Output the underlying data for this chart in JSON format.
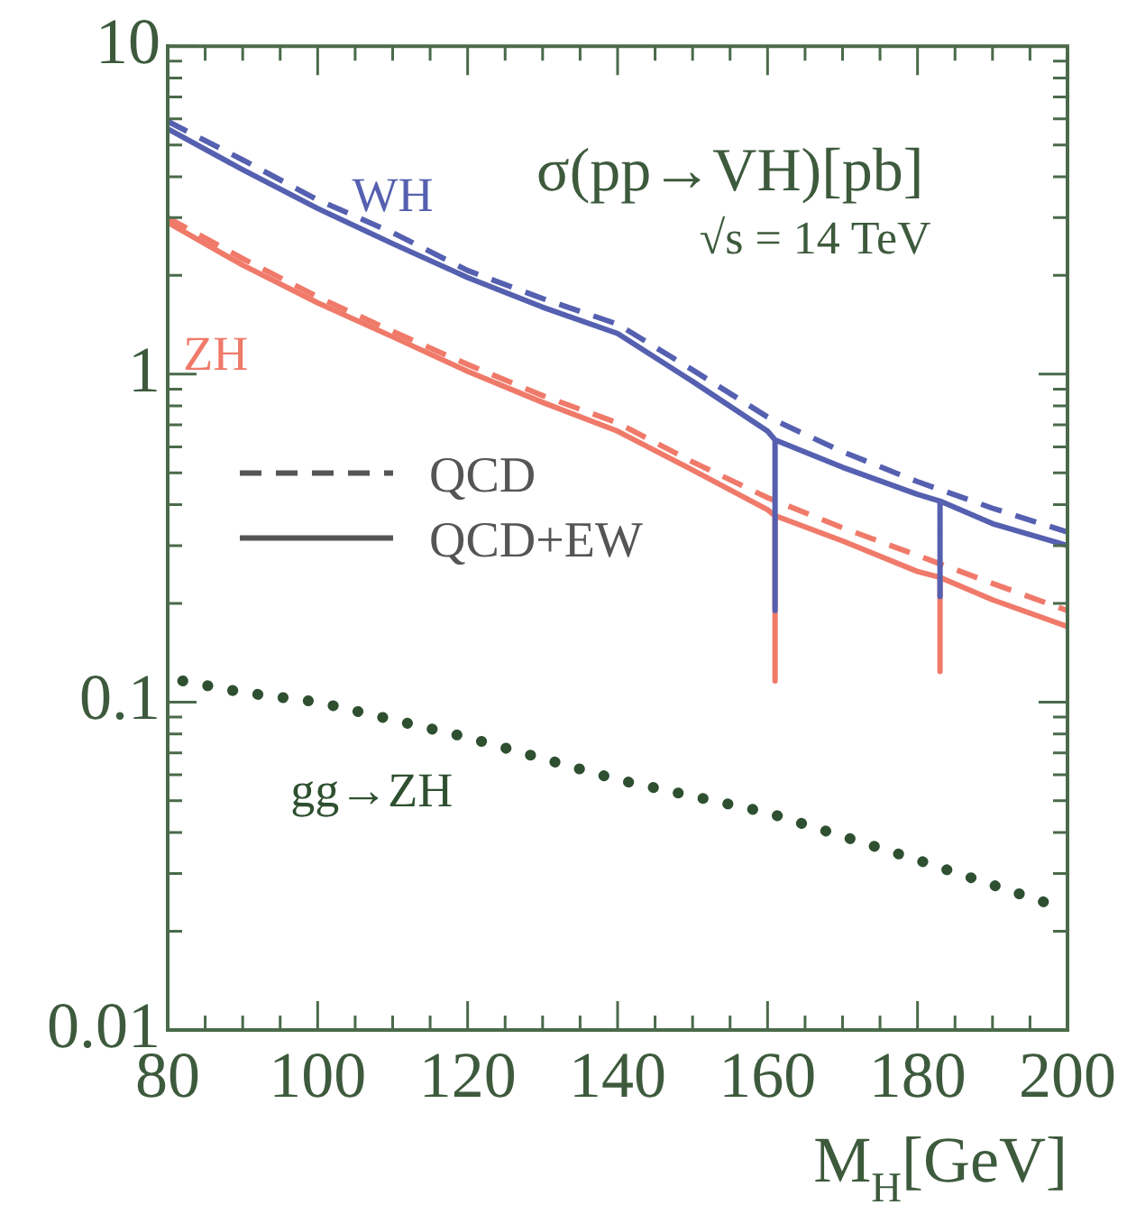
{
  "chart_data": {
    "type": "line",
    "title": "σ(pp→VH)[pb]",
    "subtitle": "√s = 14 TeV",
    "xlabel": "M$_{H}$[GeV]",
    "xlim": [
      80,
      200
    ],
    "xticks": [
      80,
      {
        "value": 85,
        "label": null
      },
      {
        "value": 90,
        "label": null
      },
      {
        "value": 95,
        "label": null
      },
      100,
      {
        "value": 105,
        "label": null
      },
      {
        "value": 110,
        "label": null
      },
      {
        "value": 115,
        "label": null
      },
      120,
      {
        "value": 125,
        "label": null
      },
      {
        "value": 130,
        "label": null
      },
      {
        "value": 135,
        "label": null
      },
      140,
      {
        "value": 145,
        "label": null
      },
      {
        "value": 150,
        "label": null
      },
      {
        "value": 155,
        "label": null
      },
      160,
      {
        "value": 165,
        "label": null
      },
      {
        "value": 170,
        "label": null
      },
      {
        "value": 175,
        "label": null
      },
      180,
      {
        "value": 185,
        "label": null
      },
      {
        "value": 190,
        "label": null
      },
      {
        "value": 195,
        "label": null
      },
      200
    ],
    "ylim": [
      0.01,
      10
    ],
    "yticks": [
      0.01,
      {
        "value": 0.02,
        "label": null
      },
      {
        "value": 0.03,
        "label": null
      },
      {
        "value": 0.04,
        "label": null
      },
      {
        "value": 0.05,
        "label": null
      },
      {
        "value": 0.06,
        "label": null
      },
      {
        "value": 0.07,
        "label": null
      },
      {
        "value": 0.08,
        "label": null
      },
      {
        "value": 0.09,
        "label": null
      },
      0.1,
      {
        "value": 0.2,
        "label": null
      },
      {
        "value": 0.3,
        "label": null
      },
      {
        "value": 0.4,
        "label": null
      },
      {
        "value": 0.5,
        "label": null
      },
      {
        "value": 0.6,
        "label": null
      },
      {
        "value": 0.7,
        "label": null
      },
      {
        "value": 0.8,
        "label": null
      },
      {
        "value": 0.9,
        "label": null
      },
      1,
      {
        "value": 2,
        "label": null
      },
      {
        "value": 3,
        "label": null
      },
      {
        "value": 4,
        "label": null
      },
      {
        "value": 5,
        "label": null
      },
      {
        "value": 6,
        "label": null
      },
      {
        "value": 7,
        "label": null
      },
      {
        "value": 8,
        "label": null
      },
      {
        "value": 9,
        "label": null
      },
      10
    ],
    "log": "y",
    "grid": false,
    "legend": "left",
    "series": [
      {
        "name": "QCD",
        "color": "#555555",
        "line_style": "dashed"
      },
      {
        "name": "QCD+EW",
        "color": "#555555",
        "line_style": "solid"
      },
      {
        "color": "#f07a6a",
        "line_style": "dashed",
        "x": [
          80,
          90,
          100,
          110,
          120,
          130,
          140,
          150,
          160,
          170,
          180,
          190,
          200
        ],
        "values": [
          3.0,
          2.25,
          1.72,
          1.35,
          1.07,
          0.86,
          0.71,
          0.54,
          0.42,
          0.34,
          0.28,
          0.23,
          0.19
        ]
      },
      {
        "name": "ZH",
        "color": "#f07a6a",
        "line_style": "solid",
        "x": [
          80,
          90,
          100,
          110,
          120,
          130,
          140,
          150,
          160,
          161,
          161,
          161,
          170,
          180,
          183,
          183,
          183,
          190,
          200
        ],
        "values": [
          2.9,
          2.15,
          1.65,
          1.3,
          1.02,
          0.82,
          0.67,
          0.51,
          0.386,
          0.37,
          0.116,
          0.37,
          0.31,
          0.25,
          0.24,
          0.124,
          0.24,
          0.205,
          0.17
        ]
      },
      {
        "color": "#5560b0",
        "line_style": "dashed",
        "x": [
          80,
          90,
          100,
          110,
          120,
          130,
          140,
          150,
          160,
          170,
          180,
          190,
          200
        ],
        "values": [
          5.9,
          4.5,
          3.4,
          2.7,
          2.07,
          1.7,
          1.42,
          1.03,
          0.74,
          0.58,
          0.47,
          0.39,
          0.33
        ]
      },
      {
        "name": "WH",
        "color": "#5560b0",
        "line_style": "solid",
        "x": [
          80,
          90,
          100,
          110,
          120,
          130,
          140,
          150,
          160,
          161,
          161,
          161,
          170,
          180,
          183,
          183,
          183,
          190,
          200
        ],
        "values": [
          5.6,
          4.2,
          3.2,
          2.5,
          1.97,
          1.6,
          1.33,
          0.95,
          0.67,
          0.63,
          0.19,
          0.63,
          0.52,
          0.43,
          0.41,
          0.21,
          0.41,
          0.35,
          0.3
        ]
      },
      {
        "name": "gg→ZH",
        "color": "#2e5030",
        "line_style": "dotted",
        "x": [
          82,
          90,
          100,
          120,
          140,
          160,
          180,
          197
        ],
        "values": [
          0.116,
          0.107,
          0.1,
          0.078,
          0.058,
          0.046,
          0.033,
          0.0245
        ]
      }
    ]
  }
}
